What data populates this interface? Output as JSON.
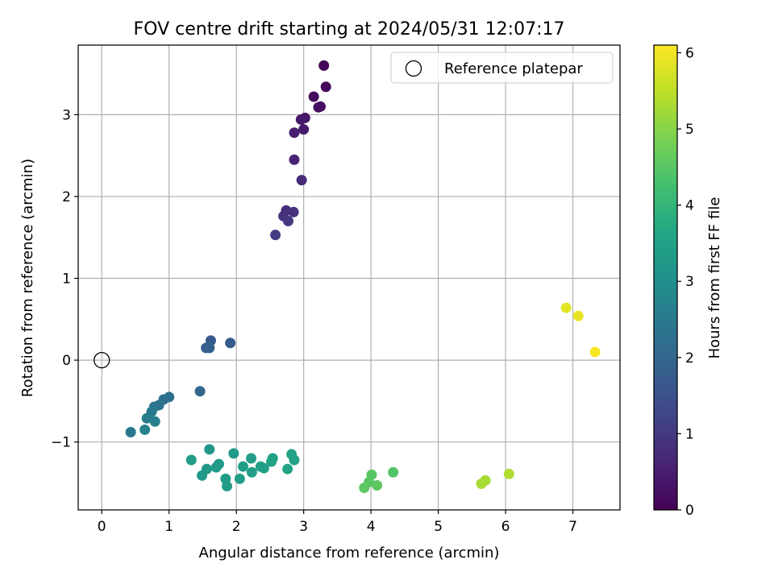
{
  "chart_data": {
    "type": "scatter",
    "title": "FOV centre drift starting at 2024/05/31 12:07:17",
    "xlabel": "Angular distance from reference (arcmin)",
    "ylabel": "Rotation from reference (arcmin)",
    "colorbar_label": "Hours from first FF file",
    "xlim": [
      -0.35,
      7.7
    ],
    "ylim": [
      -1.83,
      3.85
    ],
    "clim": [
      0,
      6.1
    ],
    "x_ticks": [
      0,
      1,
      2,
      3,
      4,
      5,
      6,
      7
    ],
    "y_ticks": [
      -1,
      0,
      1,
      2,
      3
    ],
    "colorbar_ticks": [
      0,
      1,
      2,
      3,
      4,
      5,
      6
    ],
    "colormap": "viridis",
    "grid": true,
    "legend_position": "top-right",
    "legend_entries": [
      "Reference platepar"
    ],
    "reference_point": {
      "x": 0,
      "y": 0
    },
    "points": [
      {
        "x": 3.3,
        "y": 3.6,
        "t": 0.05
      },
      {
        "x": 3.33,
        "y": 3.34,
        "t": 0.1
      },
      {
        "x": 3.15,
        "y": 3.22,
        "t": 0.15
      },
      {
        "x": 3.22,
        "y": 3.09,
        "t": 0.2
      },
      {
        "x": 3.25,
        "y": 3.1,
        "t": 0.25
      },
      {
        "x": 3.02,
        "y": 2.96,
        "t": 0.35
      },
      {
        "x": 2.96,
        "y": 2.94,
        "t": 0.4
      },
      {
        "x": 3.0,
        "y": 2.82,
        "t": 0.45
      },
      {
        "x": 2.86,
        "y": 2.78,
        "t": 0.5
      },
      {
        "x": 2.86,
        "y": 2.45,
        "t": 0.6
      },
      {
        "x": 2.97,
        "y": 2.2,
        "t": 0.7
      },
      {
        "x": 2.74,
        "y": 1.83,
        "t": 0.8
      },
      {
        "x": 2.85,
        "y": 1.81,
        "t": 0.85
      },
      {
        "x": 2.7,
        "y": 1.76,
        "t": 0.9
      },
      {
        "x": 2.77,
        "y": 1.7,
        "t": 0.95
      },
      {
        "x": 2.58,
        "y": 1.53,
        "t": 1.05
      },
      {
        "x": 1.62,
        "y": 0.24,
        "t": 1.7
      },
      {
        "x": 1.55,
        "y": 0.15,
        "t": 1.8
      },
      {
        "x": 1.6,
        "y": 0.15,
        "t": 1.85
      },
      {
        "x": 1.91,
        "y": 0.21,
        "t": 1.75
      },
      {
        "x": 1.46,
        "y": -0.38,
        "t": 2.0
      },
      {
        "x": 1.0,
        "y": -0.45,
        "t": 2.2
      },
      {
        "x": 0.92,
        "y": -0.48,
        "t": 2.25
      },
      {
        "x": 0.85,
        "y": -0.55,
        "t": 2.35
      },
      {
        "x": 0.78,
        "y": -0.57,
        "t": 2.4
      },
      {
        "x": 0.74,
        "y": -0.63,
        "t": 2.5
      },
      {
        "x": 0.67,
        "y": -0.71,
        "t": 2.55
      },
      {
        "x": 0.79,
        "y": -0.75,
        "t": 2.6
      },
      {
        "x": 0.64,
        "y": -0.85,
        "t": 2.7
      },
      {
        "x": 0.43,
        "y": -0.88,
        "t": 2.45
      },
      {
        "x": 1.6,
        "y": -1.09,
        "t": 3.2
      },
      {
        "x": 1.96,
        "y": -1.14,
        "t": 3.3
      },
      {
        "x": 1.33,
        "y": -1.22,
        "t": 3.35
      },
      {
        "x": 2.22,
        "y": -1.2,
        "t": 3.4
      },
      {
        "x": 2.54,
        "y": -1.2,
        "t": 3.45
      },
      {
        "x": 2.82,
        "y": -1.15,
        "t": 3.5
      },
      {
        "x": 2.86,
        "y": -1.22,
        "t": 3.5
      },
      {
        "x": 1.56,
        "y": -1.33,
        "t": 3.25
      },
      {
        "x": 1.7,
        "y": -1.31,
        "t": 3.3
      },
      {
        "x": 1.74,
        "y": -1.27,
        "t": 3.35
      },
      {
        "x": 2.1,
        "y": -1.3,
        "t": 3.4
      },
      {
        "x": 2.36,
        "y": -1.3,
        "t": 3.45
      },
      {
        "x": 2.52,
        "y": -1.24,
        "t": 3.5
      },
      {
        "x": 2.23,
        "y": -1.37,
        "t": 3.4
      },
      {
        "x": 2.41,
        "y": -1.32,
        "t": 3.45
      },
      {
        "x": 2.76,
        "y": -1.33,
        "t": 3.55
      },
      {
        "x": 1.49,
        "y": -1.41,
        "t": 3.25
      },
      {
        "x": 1.84,
        "y": -1.45,
        "t": 3.35
      },
      {
        "x": 2.05,
        "y": -1.45,
        "t": 3.4
      },
      {
        "x": 1.86,
        "y": -1.54,
        "t": 3.35
      },
      {
        "x": 4.01,
        "y": -1.4,
        "t": 4.5
      },
      {
        "x": 4.33,
        "y": -1.37,
        "t": 4.4
      },
      {
        "x": 3.97,
        "y": -1.49,
        "t": 4.5
      },
      {
        "x": 4.09,
        "y": -1.53,
        "t": 4.55
      },
      {
        "x": 3.9,
        "y": -1.56,
        "t": 4.55
      },
      {
        "x": 5.7,
        "y": -1.47,
        "t": 5.3
      },
      {
        "x": 5.64,
        "y": -1.51,
        "t": 5.3
      },
      {
        "x": 6.05,
        "y": -1.39,
        "t": 5.35
      },
      {
        "x": 6.9,
        "y": 0.64,
        "t": 5.85
      },
      {
        "x": 7.08,
        "y": 0.54,
        "t": 5.9
      },
      {
        "x": 7.33,
        "y": 0.1,
        "t": 6.05
      }
    ]
  }
}
